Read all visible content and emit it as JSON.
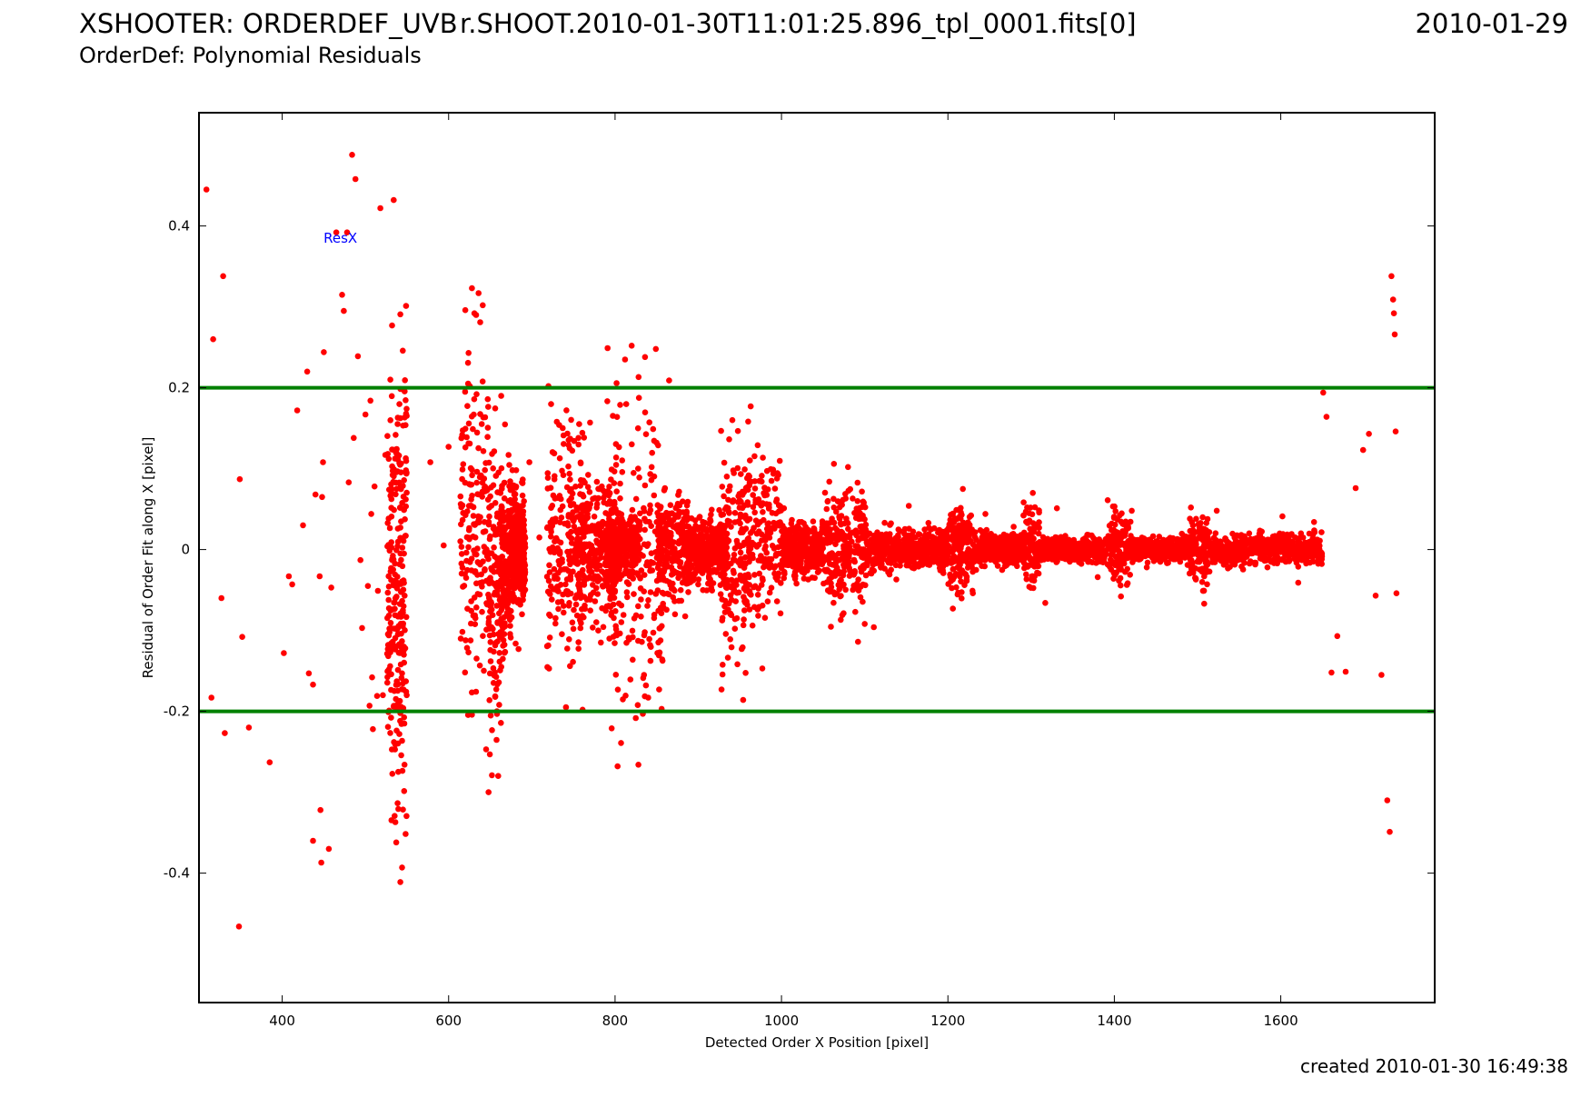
{
  "header": {
    "title_main": "XSHOOTER: ORDERDEF_UVB",
    "title_file": "r.SHOOT.2010-01-30T11:01:25.896_tpl_0001.fits[0]",
    "title_date": "2010-01-29",
    "subtitle": "OrderDef: Polynomial Residuals"
  },
  "footer": {
    "created": "created 2010-01-30 16:49:38"
  },
  "colors": {
    "points": "#ff0000",
    "threshold_lines": "#008000",
    "series_label": "#0000ff",
    "axes": "#000000"
  },
  "chart_data": {
    "type": "scatter",
    "title": "",
    "xlabel": "Detected Order X Position [pixel]",
    "ylabel": "Residual of Order Fit along X [pixel]",
    "xlim": [
      300,
      1785
    ],
    "ylim": [
      -0.56,
      0.54
    ],
    "xticks": [
      400,
      600,
      800,
      1000,
      1200,
      1400,
      1600
    ],
    "yticks": [
      -0.4,
      -0.2,
      0,
      0.2,
      0.4
    ],
    "ytick_labels": [
      "-0.4",
      "-0.2",
      "0",
      "0.2",
      "0.4"
    ],
    "grid": false,
    "legend": "none",
    "series_label": "ResX",
    "series_label_position": [
      470,
      0.385
    ],
    "threshold_lines": [
      0.2,
      -0.2
    ],
    "series": [
      {
        "name": "ResX",
        "points": [
          [
            309,
            0.445
          ],
          [
            315,
            -0.183
          ],
          [
            317,
            0.26
          ],
          [
            327,
            -0.06
          ],
          [
            329,
            0.338
          ],
          [
            331,
            -0.227
          ],
          [
            348,
            -0.466
          ],
          [
            349,
            0.087
          ],
          [
            352,
            -0.108
          ],
          [
            360,
            -0.22
          ],
          [
            385,
            -0.263
          ],
          [
            402,
            -0.128
          ],
          [
            408,
            -0.033
          ],
          [
            412,
            -0.043
          ],
          [
            418,
            0.172
          ],
          [
            425,
            0.03
          ],
          [
            430,
            0.22
          ],
          [
            432,
            -0.153
          ],
          [
            437,
            -0.36
          ],
          [
            437,
            -0.167
          ],
          [
            440,
            0.068
          ],
          [
            445,
            -0.033
          ],
          [
            446,
            -0.322
          ],
          [
            447,
            -0.387
          ],
          [
            448,
            0.065
          ],
          [
            449,
            0.108
          ],
          [
            450,
            0.244
          ],
          [
            456,
            -0.37
          ],
          [
            459,
            -0.047
          ],
          [
            465,
            0.392
          ],
          [
            472,
            0.315
          ],
          [
            474,
            0.295
          ],
          [
            478,
            0.392
          ],
          [
            480,
            0.083
          ],
          [
            484,
            0.488
          ],
          [
            486,
            0.138
          ],
          [
            488,
            0.458
          ],
          [
            491,
            0.239
          ],
          [
            494,
            -0.013
          ],
          [
            496,
            -0.097
          ],
          [
            500,
            0.167
          ],
          [
            503,
            -0.045
          ],
          [
            505,
            -0.193
          ],
          [
            506,
            0.184
          ],
          [
            507,
            0.044
          ],
          [
            508,
            -0.158
          ],
          [
            509,
            -0.222
          ],
          [
            511,
            0.078
          ],
          [
            514,
            -0.181
          ],
          [
            515,
            -0.051
          ],
          [
            518,
            0.422
          ],
          [
            521,
            -0.18
          ],
          [
            524,
            0.117
          ],
          [
            527,
            -0.123
          ],
          [
            530,
            0.21
          ],
          [
            534,
            0.432
          ],
          [
            536,
            -0.337
          ],
          [
            537,
            -0.362
          ],
          [
            542,
            -0.411
          ],
          [
            544,
            -0.393
          ],
          [
            578,
            0.108
          ],
          [
            594,
            0.005
          ],
          [
            600,
            0.127
          ],
          [
            620,
            0.296
          ],
          [
            624,
            0.243
          ],
          [
            628,
            0.323
          ],
          [
            631,
            0.292
          ],
          [
            633,
            0.29
          ],
          [
            636,
            0.317
          ],
          [
            638,
            0.281
          ],
          [
            641,
            0.302
          ],
          [
            645,
            -0.247
          ],
          [
            648,
            -0.3
          ],
          [
            652,
            -0.279
          ],
          [
            658,
            -0.2
          ],
          [
            664,
            0.045
          ],
          [
            672,
            0.117
          ],
          [
            680,
            0.019
          ],
          [
            684,
            -0.123
          ],
          [
            697,
            0.108
          ],
          [
            709,
            0.015
          ],
          [
            720,
            0.202
          ],
          [
            730,
            0.158
          ],
          [
            741,
            -0.195
          ],
          [
            756,
            0.138
          ],
          [
            761,
            -0.198
          ],
          [
            770,
            0.157
          ],
          [
            783,
            -0.115
          ],
          [
            791,
            0.249
          ],
          [
            796,
            -0.221
          ],
          [
            803,
            -0.268
          ],
          [
            812,
            0.235
          ],
          [
            820,
            0.252
          ],
          [
            828,
            -0.266
          ],
          [
            836,
            0.238
          ],
          [
            842,
            -0.118
          ],
          [
            849,
            0.248
          ],
          [
            856,
            -0.197
          ],
          [
            865,
            0.209
          ],
          [
            872,
            -0.08
          ],
          [
            886,
            0.047
          ],
          [
            894,
            -0.038
          ],
          [
            904,
            0.013
          ],
          [
            917,
            -0.012
          ],
          [
            928,
            -0.173
          ],
          [
            941,
            0.16
          ],
          [
            954,
            -0.186
          ],
          [
            963,
            0.177
          ],
          [
            977,
            -0.147
          ],
          [
            988,
            0.085
          ],
          [
            1003,
            0.051
          ],
          [
            1018,
            -0.042
          ],
          [
            1029,
            0.028
          ],
          [
            1040,
            -0.035
          ],
          [
            1050,
            0.012
          ],
          [
            1063,
            0.106
          ],
          [
            1072,
            -0.045
          ],
          [
            1080,
            0.102
          ],
          [
            1092,
            -0.114
          ],
          [
            1099,
            0.058
          ],
          [
            1111,
            -0.096
          ],
          [
            1124,
            0.033
          ],
          [
            1138,
            -0.037
          ],
          [
            1153,
            0.054
          ],
          [
            1168,
            -0.013
          ],
          [
            1188,
            0.021
          ],
          [
            1206,
            -0.073
          ],
          [
            1218,
            0.075
          ],
          [
            1230,
            -0.054
          ],
          [
            1245,
            0.044
          ],
          [
            1262,
            -0.012
          ],
          [
            1279,
            0.017
          ],
          [
            1302,
            0.07
          ],
          [
            1317,
            -0.066
          ],
          [
            1331,
            0.051
          ],
          [
            1352,
            -0.011
          ],
          [
            1369,
            0.018
          ],
          [
            1380,
            -0.034
          ],
          [
            1392,
            0.061
          ],
          [
            1408,
            -0.058
          ],
          [
            1421,
            0.048
          ],
          [
            1439,
            -0.022
          ],
          [
            1459,
            0.012
          ],
          [
            1479,
            -0.015
          ],
          [
            1492,
            0.052
          ],
          [
            1508,
            -0.067
          ],
          [
            1523,
            0.048
          ],
          [
            1541,
            -0.013
          ],
          [
            1562,
            0.02
          ],
          [
            1584,
            -0.022
          ],
          [
            1602,
            0.041
          ],
          [
            1621,
            -0.041
          ],
          [
            1640,
            0.034
          ],
          [
            1651,
            0.194
          ],
          [
            1655,
            0.164
          ],
          [
            1661,
            -0.152
          ],
          [
            1668,
            -0.107
          ],
          [
            1678,
            -0.151
          ],
          [
            1690,
            0.076
          ],
          [
            1699,
            0.123
          ],
          [
            1706,
            0.143
          ],
          [
            1714,
            -0.057
          ],
          [
            1721,
            -0.155
          ],
          [
            1728,
            -0.31
          ],
          [
            1731,
            -0.349
          ],
          [
            1733,
            0.338
          ],
          [
            1735,
            0.309
          ],
          [
            1736,
            0.292
          ],
          [
            1737,
            0.266
          ],
          [
            1738,
            0.146
          ],
          [
            1739,
            -0.054
          ]
        ]
      }
    ],
    "dense_clusters": [
      {
        "x_range": [
          526,
          550
        ],
        "y_range": [
          -0.415,
          0.36
        ],
        "density": 260
      },
      {
        "x_range": [
          614,
          648
        ],
        "y_range": [
          -0.245,
          0.305
        ],
        "density": 170
      },
      {
        "x_range": [
          648,
          668
        ],
        "y_range": [
          -0.305,
          0.22
        ],
        "density": 170
      },
      {
        "x_range": [
          664,
          690
        ],
        "y_range": [
          -0.13,
          0.13
        ],
        "density": 280
      },
      {
        "x_range": [
          675,
          692
        ],
        "y_range": [
          -0.08,
          0.08
        ],
        "density": 230
      },
      {
        "x_range": [
          718,
          764
        ],
        "y_range": [
          -0.2,
          0.205
        ],
        "density": 200
      },
      {
        "x_range": [
          752,
          802
        ],
        "y_range": [
          -0.125,
          0.125
        ],
        "density": 290
      },
      {
        "x_range": [
          788,
          830
        ],
        "y_range": [
          -0.05,
          0.05
        ],
        "density": 300
      },
      {
        "x_range": [
          790,
          860
        ],
        "y_range": [
          -0.275,
          0.26
        ],
        "density": 230
      },
      {
        "x_range": [
          850,
          888
        ],
        "y_range": [
          -0.095,
          0.095
        ],
        "density": 230
      },
      {
        "x_range": [
          885,
          935
        ],
        "y_range": [
          -0.06,
          0.06
        ],
        "density": 330
      },
      {
        "x_range": [
          925,
          962
        ],
        "y_range": [
          -0.185,
          0.185
        ],
        "density": 180
      },
      {
        "x_range": [
          955,
          1000
        ],
        "y_range": [
          -0.135,
          0.175
        ],
        "density": 170
      },
      {
        "x_range": [
          1000,
          1050
        ],
        "y_range": [
          -0.045,
          0.045
        ],
        "density": 350
      },
      {
        "x_range": [
          1050,
          1102
        ],
        "y_range": [
          -0.11,
          0.11
        ],
        "density": 250
      },
      {
        "x_range": [
          1100,
          1200
        ],
        "y_range": [
          -0.035,
          0.035
        ],
        "density": 470
      },
      {
        "x_range": [
          1200,
          1230
        ],
        "y_range": [
          -0.075,
          0.075
        ],
        "density": 170
      },
      {
        "x_range": [
          1230,
          1290
        ],
        "y_range": [
          -0.03,
          0.03
        ],
        "density": 330
      },
      {
        "x_range": [
          1290,
          1310
        ],
        "y_range": [
          -0.07,
          0.07
        ],
        "density": 110
      },
      {
        "x_range": [
          1310,
          1390
        ],
        "y_range": [
          -0.022,
          0.022
        ],
        "density": 450
      },
      {
        "x_range": [
          1392,
          1420
        ],
        "y_range": [
          -0.06,
          0.06
        ],
        "density": 150
      },
      {
        "x_range": [
          1420,
          1490
        ],
        "y_range": [
          -0.022,
          0.022
        ],
        "density": 380
      },
      {
        "x_range": [
          1490,
          1515
        ],
        "y_range": [
          -0.065,
          0.065
        ],
        "density": 140
      },
      {
        "x_range": [
          1515,
          1650
        ],
        "y_range": [
          -0.028,
          0.028
        ],
        "density": 540
      }
    ]
  }
}
